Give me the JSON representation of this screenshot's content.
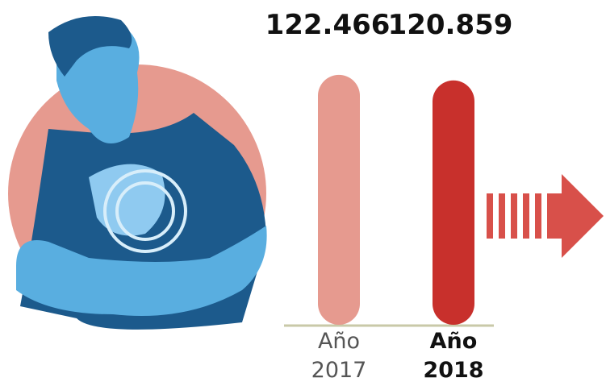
{
  "chart_data": {
    "type": "bar",
    "categories": [
      "Año 2017",
      "Año 2018"
    ],
    "values": [
      122466,
      120859
    ],
    "value_labels": [
      "122.466",
      "120.859"
    ],
    "colors": [
      "#e69a8f",
      "#c8302c"
    ],
    "ylim": [
      50000,
      125000
    ]
  }
}
